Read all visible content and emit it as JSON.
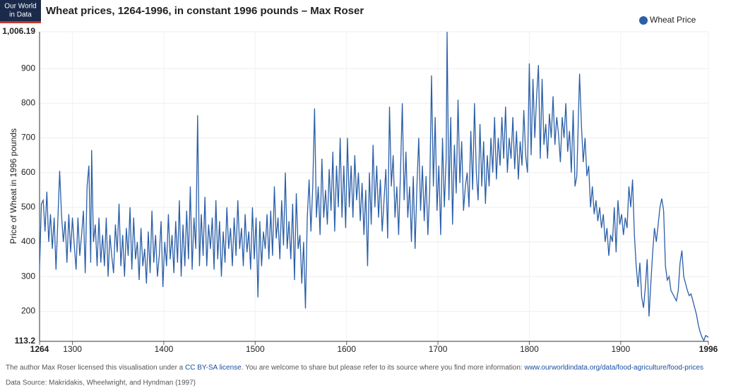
{
  "chart_data": {
    "type": "line",
    "logo": [
      "Our World",
      "in Data"
    ],
    "title": "Wheat prices, 1264-1996, in constant 1996 pounds – Max Roser",
    "y_label": "Price of Wheat in 1996 pounds",
    "xlim": [
      1264,
      1996
    ],
    "xticks": [
      1264,
      1300,
      1400,
      1500,
      1600,
      1700,
      1800,
      1900,
      1996
    ],
    "ylim": [
      113.2,
      1006.19
    ],
    "yticks": [
      113.2,
      200,
      300,
      400,
      500,
      600,
      700,
      800,
      900,
      {
        "value": 1006.19,
        "label": "1,006.19"
      }
    ],
    "grid": true,
    "legend": "top-right",
    "series": [
      {
        "name": "Wheat Price",
        "color": "#2b5fa8",
        "x": [
          1264,
          1266,
          1268,
          1270,
          1272,
          1274,
          1276,
          1278,
          1280,
          1282,
          1284,
          1286,
          1288,
          1290,
          1292,
          1294,
          1296,
          1298,
          1300,
          1302,
          1304,
          1306,
          1308,
          1310,
          1312,
          1314,
          1316,
          1318,
          1320,
          1321,
          1323,
          1325,
          1327,
          1329,
          1331,
          1333,
          1335,
          1337,
          1339,
          1341,
          1343,
          1345,
          1347,
          1349,
          1351,
          1353,
          1355,
          1357,
          1359,
          1361,
          1363,
          1365,
          1367,
          1369,
          1371,
          1373,
          1375,
          1377,
          1379,
          1381,
          1383,
          1385,
          1387,
          1389,
          1391,
          1393,
          1395,
          1397,
          1399,
          1401,
          1403,
          1405,
          1407,
          1409,
          1411,
          1413,
          1415,
          1417,
          1419,
          1421,
          1423,
          1425,
          1427,
          1429,
          1431,
          1433,
          1435,
          1437,
          1439,
          1441,
          1443,
          1445,
          1447,
          1449,
          1451,
          1453,
          1455,
          1457,
          1459,
          1461,
          1463,
          1465,
          1467,
          1469,
          1471,
          1473,
          1475,
          1477,
          1479,
          1481,
          1483,
          1485,
          1487,
          1489,
          1491,
          1493,
          1495,
          1497,
          1499,
          1501,
          1503,
          1505,
          1507,
          1509,
          1511,
          1513,
          1515,
          1517,
          1519,
          1521,
          1523,
          1525,
          1527,
          1529,
          1531,
          1533,
          1535,
          1537,
          1539,
          1541,
          1543,
          1545,
          1547,
          1549,
          1551,
          1553,
          1555,
          1557,
          1559,
          1561,
          1563,
          1565,
          1567,
          1569,
          1571,
          1573,
          1575,
          1577,
          1579,
          1581,
          1583,
          1585,
          1587,
          1589,
          1591,
          1593,
          1595,
          1597,
          1599,
          1601,
          1603,
          1605,
          1607,
          1609,
          1611,
          1613,
          1615,
          1617,
          1619,
          1621,
          1623,
          1625,
          1627,
          1629,
          1631,
          1633,
          1635,
          1637,
          1639,
          1641,
          1643,
          1645,
          1647,
          1649,
          1651,
          1653,
          1655,
          1657,
          1659,
          1661,
          1663,
          1665,
          1667,
          1669,
          1671,
          1673,
          1675,
          1677,
          1679,
          1681,
          1683,
          1685,
          1687,
          1689,
          1691,
          1693,
          1695,
          1697,
          1699,
          1701,
          1703,
          1705,
          1707,
          1709,
          1710,
          1712,
          1714,
          1716,
          1718,
          1720,
          1722,
          1724,
          1726,
          1728,
          1730,
          1732,
          1734,
          1736,
          1738,
          1740,
          1742,
          1744,
          1746,
          1748,
          1750,
          1752,
          1754,
          1756,
          1758,
          1760,
          1762,
          1764,
          1766,
          1768,
          1770,
          1772,
          1774,
          1776,
          1778,
          1780,
          1782,
          1784,
          1786,
          1788,
          1790,
          1792,
          1794,
          1796,
          1798,
          1800,
          1802,
          1804,
          1806,
          1808,
          1810,
          1812,
          1814,
          1816,
          1818,
          1820,
          1822,
          1824,
          1826,
          1828,
          1830,
          1832,
          1834,
          1836,
          1838,
          1840,
          1842,
          1844,
          1846,
          1848,
          1850,
          1852,
          1855,
          1857,
          1859,
          1861,
          1863,
          1865,
          1867,
          1869,
          1871,
          1873,
          1875,
          1877,
          1879,
          1881,
          1883,
          1885,
          1887,
          1889,
          1891,
          1893,
          1895,
          1897,
          1899,
          1901,
          1903,
          1905,
          1907,
          1909,
          1911,
          1913,
          1915,
          1917,
          1919,
          1921,
          1923,
          1925,
          1927,
          1929,
          1931,
          1933,
          1935,
          1937,
          1939,
          1941,
          1943,
          1945,
          1947,
          1949,
          1951,
          1953,
          1955,
          1957,
          1959,
          1961,
          1963,
          1965,
          1967,
          1969,
          1971,
          1973,
          1975,
          1977,
          1979,
          1981,
          1983,
          1985,
          1987,
          1989,
          1991,
          1993,
          1996
        ],
        "values": [
          320,
          510,
          520,
          430,
          545,
          400,
          480,
          380,
          470,
          320,
          460,
          605,
          480,
          400,
          460,
          340,
          480,
          370,
          470,
          390,
          320,
          470,
          360,
          420,
          490,
          310,
          560,
          620,
          340,
          665,
          400,
          450,
          330,
          470,
          340,
          420,
          330,
          470,
          300,
          420,
          360,
          310,
          450,
          370,
          510,
          330,
          420,
          300,
          440,
          360,
          500,
          320,
          470,
          350,
          400,
          290,
          440,
          330,
          380,
          280,
          430,
          310,
          490,
          340,
          420,
          300,
          360,
          460,
          270,
          400,
          330,
          480,
          350,
          420,
          310,
          460,
          340,
          520,
          300,
          450,
          330,
          490,
          350,
          560,
          320,
          470,
          380,
          765,
          330,
          480,
          360,
          530,
          330,
          450,
          380,
          470,
          320,
          520,
          350,
          460,
          300,
          430,
          340,
          500,
          380,
          440,
          330,
          470,
          360,
          520,
          380,
          440,
          330,
          480,
          370,
          430,
          320,
          500,
          350,
          470,
          240,
          460,
          330,
          430,
          380,
          480,
          350,
          490,
          360,
          560,
          410,
          470,
          350,
          520,
          390,
          600,
          380,
          460,
          350,
          510,
          290,
          540,
          380,
          420,
          280,
          400,
          208,
          470,
          580,
          430,
          560,
          785,
          470,
          560,
          420,
          640,
          470,
          550,
          450,
          610,
          490,
          660,
          430,
          620,
          500,
          700,
          470,
          620,
          440,
          700,
          500,
          620,
          470,
          650,
          520,
          600,
          460,
          570,
          420,
          550,
          330,
          600,
          450,
          680,
          500,
          620,
          470,
          580,
          430,
          520,
          610,
          410,
          790,
          560,
          650,
          470,
          560,
          420,
          600,
          800,
          520,
          660,
          470,
          560,
          400,
          590,
          380,
          560,
          700,
          490,
          620,
          460,
          590,
          420,
          550,
          880,
          560,
          760,
          490,
          620,
          420,
          700,
          500,
          640,
          1006,
          520,
          760,
          450,
          680,
          540,
          810,
          570,
          690,
          490,
          560,
          600,
          500,
          720,
          550,
          800,
          600,
          520,
          740,
          560,
          690,
          510,
          650,
          560,
          700,
          600,
          760,
          580,
          700,
          620,
          760,
          640,
          790,
          600,
          700,
          640,
          760,
          610,
          720,
          580,
          690,
          620,
          780,
          650,
          600,
          915,
          650,
          870,
          700,
          820,
          910,
          640,
          870,
          680,
          740,
          640,
          770,
          700,
          820,
          680,
          760,
          710,
          630,
          760,
          700,
          800,
          660,
          720,
          600,
          780,
          560,
          590,
          885,
          740,
          630,
          700,
          590,
          620,
          500,
          560,
          480,
          520,
          460,
          500,
          440,
          480,
          400,
          440,
          360,
          420,
          400,
          500,
          370,
          520,
          450,
          480,
          420,
          470,
          440,
          560,
          500,
          580,
          420,
          330,
          270,
          340,
          240,
          210,
          270,
          350,
          185,
          280,
          370,
          440,
          400,
          450,
          500,
          525,
          490,
          330,
          290,
          300,
          260,
          250,
          240,
          230,
          260,
          340,
          375,
          300,
          280,
          260,
          245,
          250,
          230,
          210,
          190,
          160,
          140,
          125,
          115,
          130,
          125
        ]
      }
    ],
    "footer": {
      "license_pre": "The author Max Roser licensed this visualisation under a",
      "license_link": "CC BY-SA license",
      "license_post": ". You are welcome to share but please refer to its source where you find more information:",
      "source_link": "www.ourworldindata.org/data/food-agriculture/food-prices",
      "data_source": "Data Source: Makridakis, Wheelwright, and Hyndman (1997)"
    }
  }
}
